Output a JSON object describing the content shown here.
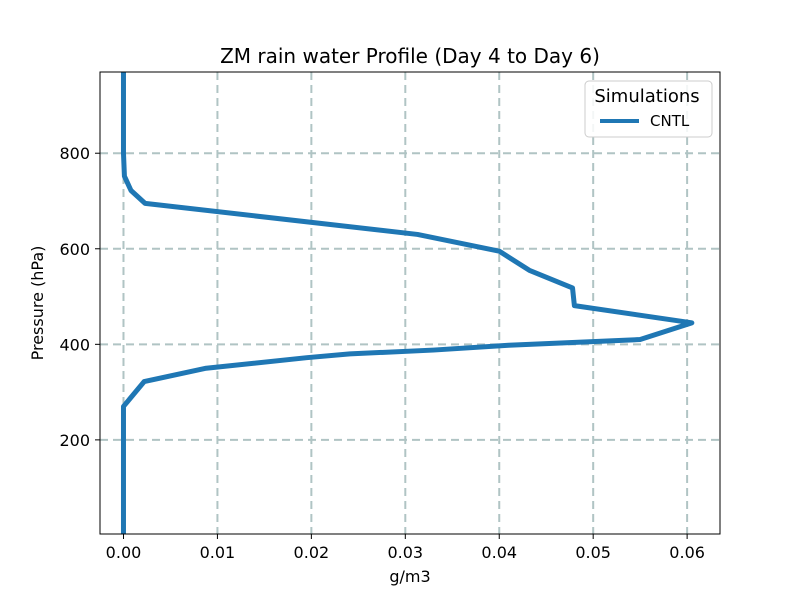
{
  "chart_data": {
    "type": "line",
    "title": "ZM rain water Profile (Day 4 to Day 6)",
    "xlabel": "g/m3",
    "ylabel": "Pressure (hPa)",
    "xlim": [
      -0.0025,
      0.0635
    ],
    "ylim": [
      970,
      3
    ],
    "y_inverted": true,
    "xticks": [
      0.0,
      0.01,
      0.02,
      0.03,
      0.04,
      0.05,
      0.06
    ],
    "xtick_labels": [
      "0.00",
      "0.01",
      "0.02",
      "0.03",
      "0.04",
      "0.05",
      "0.06"
    ],
    "yticks": [
      200,
      400,
      600,
      800
    ],
    "ytick_labels": [
      "200",
      "400",
      "600",
      "800"
    ],
    "grid": true,
    "legend": {
      "title": "Simulations",
      "placement": "upper-right"
    },
    "series": [
      {
        "name": "CNTL",
        "color": "#1f77b4",
        "x": [
          0.0,
          0.0,
          0.0,
          0.0022,
          0.0088,
          0.0195,
          0.0241,
          0.033,
          0.041,
          0.055,
          0.0605,
          0.048,
          0.0478,
          0.0432,
          0.04,
          0.0313,
          0.0023,
          0.0008,
          0.0001,
          0.0,
          0.0
        ],
        "y": [
          3,
          150,
          270,
          322,
          350,
          372,
          380,
          388,
          398,
          410,
          445,
          481,
          518,
          555,
          595,
          630,
          695,
          722,
          752,
          800,
          970
        ]
      }
    ]
  }
}
